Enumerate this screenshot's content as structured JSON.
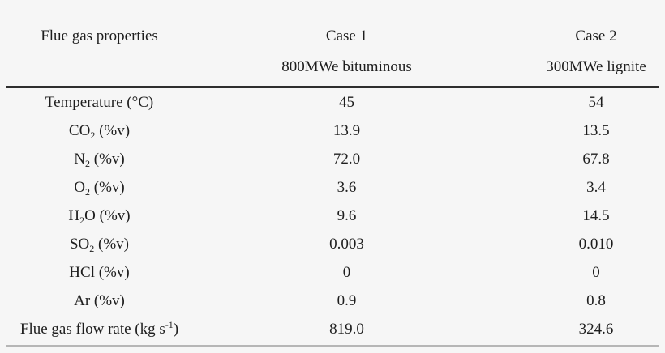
{
  "page": {
    "background": "#f6f6f6",
    "text_color": "#1e1e1e",
    "header_rule_color": "#2e2e2e",
    "bottom_rule_color": "#b6b6b6"
  },
  "table": {
    "header": {
      "col1": "Flue gas properties",
      "col2": {
        "line1": "Case 1",
        "line2": "800MWe bituminous"
      },
      "col3": {
        "line1": "Case 2",
        "line2": "300MWe lignite"
      }
    },
    "rows": [
      {
        "label_pre": "Temperature (°C)",
        "case1": "45",
        "case2": "54"
      },
      {
        "label_pre": "CO",
        "label_sub": "2",
        "label_post": " (%v)",
        "case1": "13.9",
        "case2": "13.5"
      },
      {
        "label_pre": "N",
        "label_sub": "2",
        "label_post": " (%v)",
        "case1": "72.0",
        "case2": "67.8"
      },
      {
        "label_pre": "O",
        "label_sub": "2",
        "label_post": " (%v)",
        "case1": "3.6",
        "case2": "3.4"
      },
      {
        "label_pre": "H",
        "label_sub": "2",
        "label_post": "O (%v)",
        "case1": "9.6",
        "case2": "14.5"
      },
      {
        "label_pre": "SO",
        "label_sub": "2",
        "label_post": " (%v)",
        "case1": "0.003",
        "case2": "0.010"
      },
      {
        "label_pre": "HCl (%v)",
        "case1": "0",
        "case2": "0"
      },
      {
        "label_pre": "Ar (%v)",
        "case1": "0.9",
        "case2": "0.8"
      },
      {
        "label_pre": "Flue gas flow rate (kg s",
        "label_sup": "-1",
        "label_post": ")",
        "case1": "819.0",
        "case2": "324.6"
      }
    ]
  },
  "chart_data": {
    "type": "table",
    "title": "Flue gas properties",
    "columns": [
      "Flue gas properties",
      "Case 1 800MWe bituminous",
      "Case 2 300MWe lignite"
    ],
    "rows": [
      [
        "Temperature (°C)",
        "45",
        "54"
      ],
      [
        "CO2 (%v)",
        "13.9",
        "13.5"
      ],
      [
        "N2 (%v)",
        "72.0",
        "67.8"
      ],
      [
        "O2 (%v)",
        "3.6",
        "3.4"
      ],
      [
        "H2O (%v)",
        "9.6",
        "14.5"
      ],
      [
        "SO2 (%v)",
        "0.003",
        "0.010"
      ],
      [
        "HCl (%v)",
        "0",
        "0"
      ],
      [
        "Ar (%v)",
        "0.9",
        "0.8"
      ],
      [
        "Flue gas flow rate (kg s-1)",
        "819.0",
        "324.6"
      ]
    ]
  }
}
